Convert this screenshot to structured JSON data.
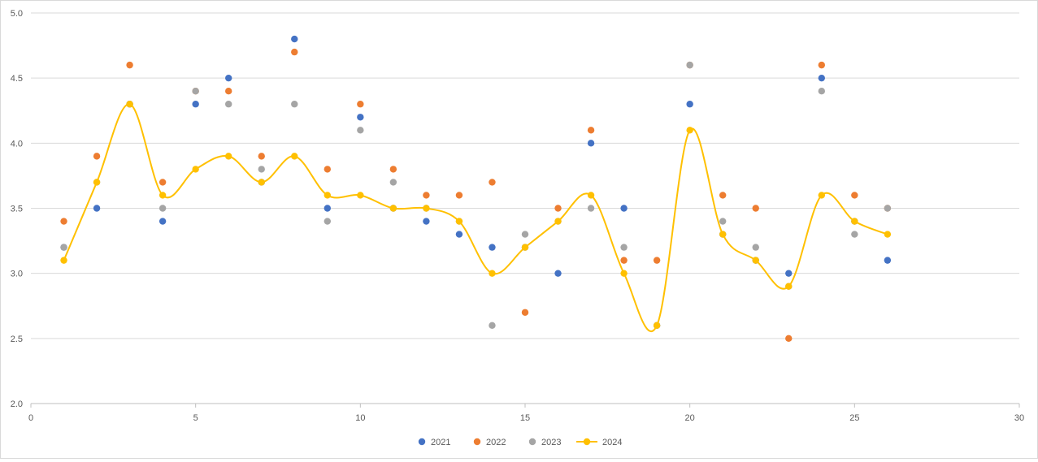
{
  "chart_data": {
    "type": "scatter",
    "title": "",
    "xlabel": "",
    "ylabel": "",
    "xlim": [
      0,
      30
    ],
    "ylim": [
      2.0,
      5.0
    ],
    "xticks": [
      "0",
      "5",
      "10",
      "15",
      "20",
      "25",
      "30"
    ],
    "yticks": [
      "2.0",
      "2.5",
      "3.0",
      "3.5",
      "4.0",
      "4.5",
      "5.0"
    ],
    "grid": "horizontal",
    "legend_position": "bottom",
    "x": [
      1,
      2,
      3,
      4,
      5,
      6,
      7,
      8,
      9,
      10,
      11,
      12,
      13,
      14,
      15,
      16,
      17,
      18,
      19,
      20,
      21,
      22,
      23,
      24,
      25,
      26
    ],
    "series": [
      {
        "name": "2021",
        "color": "#4472c4",
        "style": "markers",
        "values": [
          3.2,
          3.5,
          4.3,
          3.4,
          4.3,
          4.5,
          3.7,
          4.8,
          3.5,
          4.2,
          3.5,
          3.4,
          3.3,
          3.2,
          3.2,
          3.0,
          4.0,
          3.5,
          2.6,
          4.3,
          3.3,
          3.1,
          3.0,
          4.5,
          3.4,
          3.1
        ]
      },
      {
        "name": "2022",
        "color": "#ed7d31",
        "style": "markers",
        "values": [
          3.4,
          3.9,
          4.6,
          3.7,
          4.4,
          4.4,
          3.9,
          4.7,
          3.8,
          4.3,
          3.8,
          3.6,
          3.6,
          3.7,
          2.7,
          3.5,
          4.1,
          3.1,
          3.1,
          4.6,
          3.6,
          3.5,
          2.5,
          4.6,
          3.6,
          3.5
        ]
      },
      {
        "name": "2023",
        "color": "#a5a5a5",
        "style": "markers",
        "values": [
          3.2,
          3.7,
          4.3,
          3.5,
          4.4,
          4.3,
          3.8,
          4.3,
          3.4,
          4.1,
          3.7,
          3.5,
          3.4,
          2.6,
          3.3,
          3.4,
          3.5,
          3.2,
          2.6,
          4.6,
          3.4,
          3.2,
          2.9,
          4.4,
          3.3,
          3.5
        ]
      },
      {
        "name": "2024",
        "color": "#ffc000",
        "style": "smooth-line-markers",
        "values": [
          3.1,
          3.7,
          4.3,
          3.6,
          3.8,
          3.9,
          3.7,
          3.9,
          3.6,
          3.6,
          3.5,
          3.5,
          3.4,
          3.0,
          3.2,
          3.4,
          3.6,
          3.0,
          2.6,
          4.1,
          3.3,
          3.1,
          2.9,
          3.6,
          3.4,
          3.3
        ]
      }
    ]
  }
}
